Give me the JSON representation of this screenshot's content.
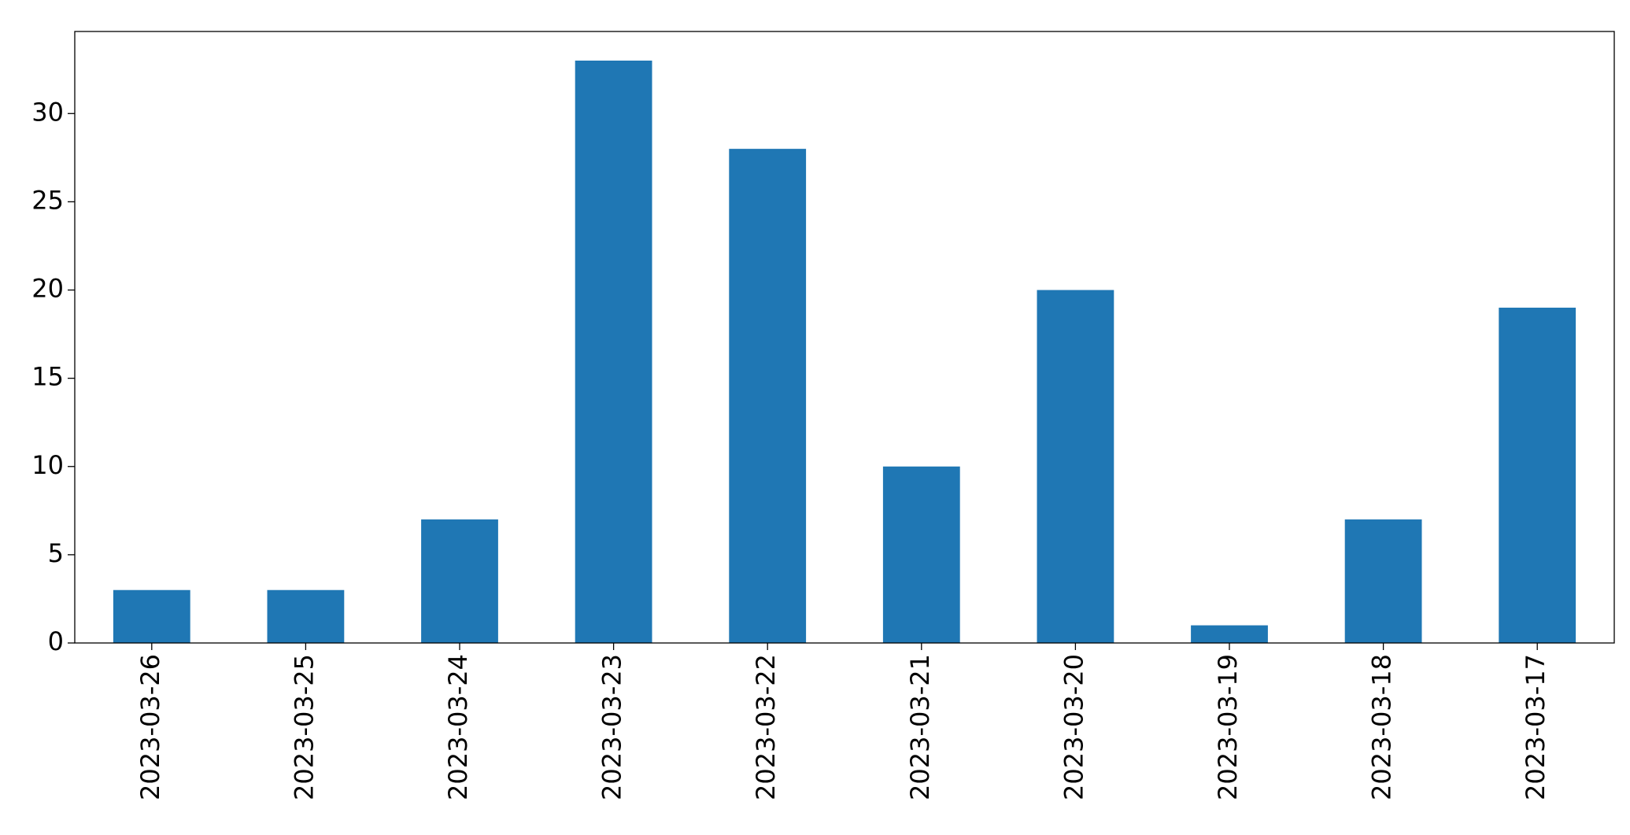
{
  "chart_data": {
    "type": "bar",
    "categories": [
      "2023-03-26",
      "2023-03-25",
      "2023-03-24",
      "2023-03-23",
      "2023-03-22",
      "2023-03-21",
      "2023-03-20",
      "2023-03-19",
      "2023-03-18",
      "2023-03-17"
    ],
    "values": [
      3,
      3,
      7,
      33,
      28,
      10,
      20,
      1,
      7,
      19
    ],
    "color": "#1f77b4",
    "ylim": [
      0,
      34.65
    ],
    "yticks": [
      0,
      5,
      10,
      15,
      20,
      25,
      30
    ],
    "grid": false
  }
}
